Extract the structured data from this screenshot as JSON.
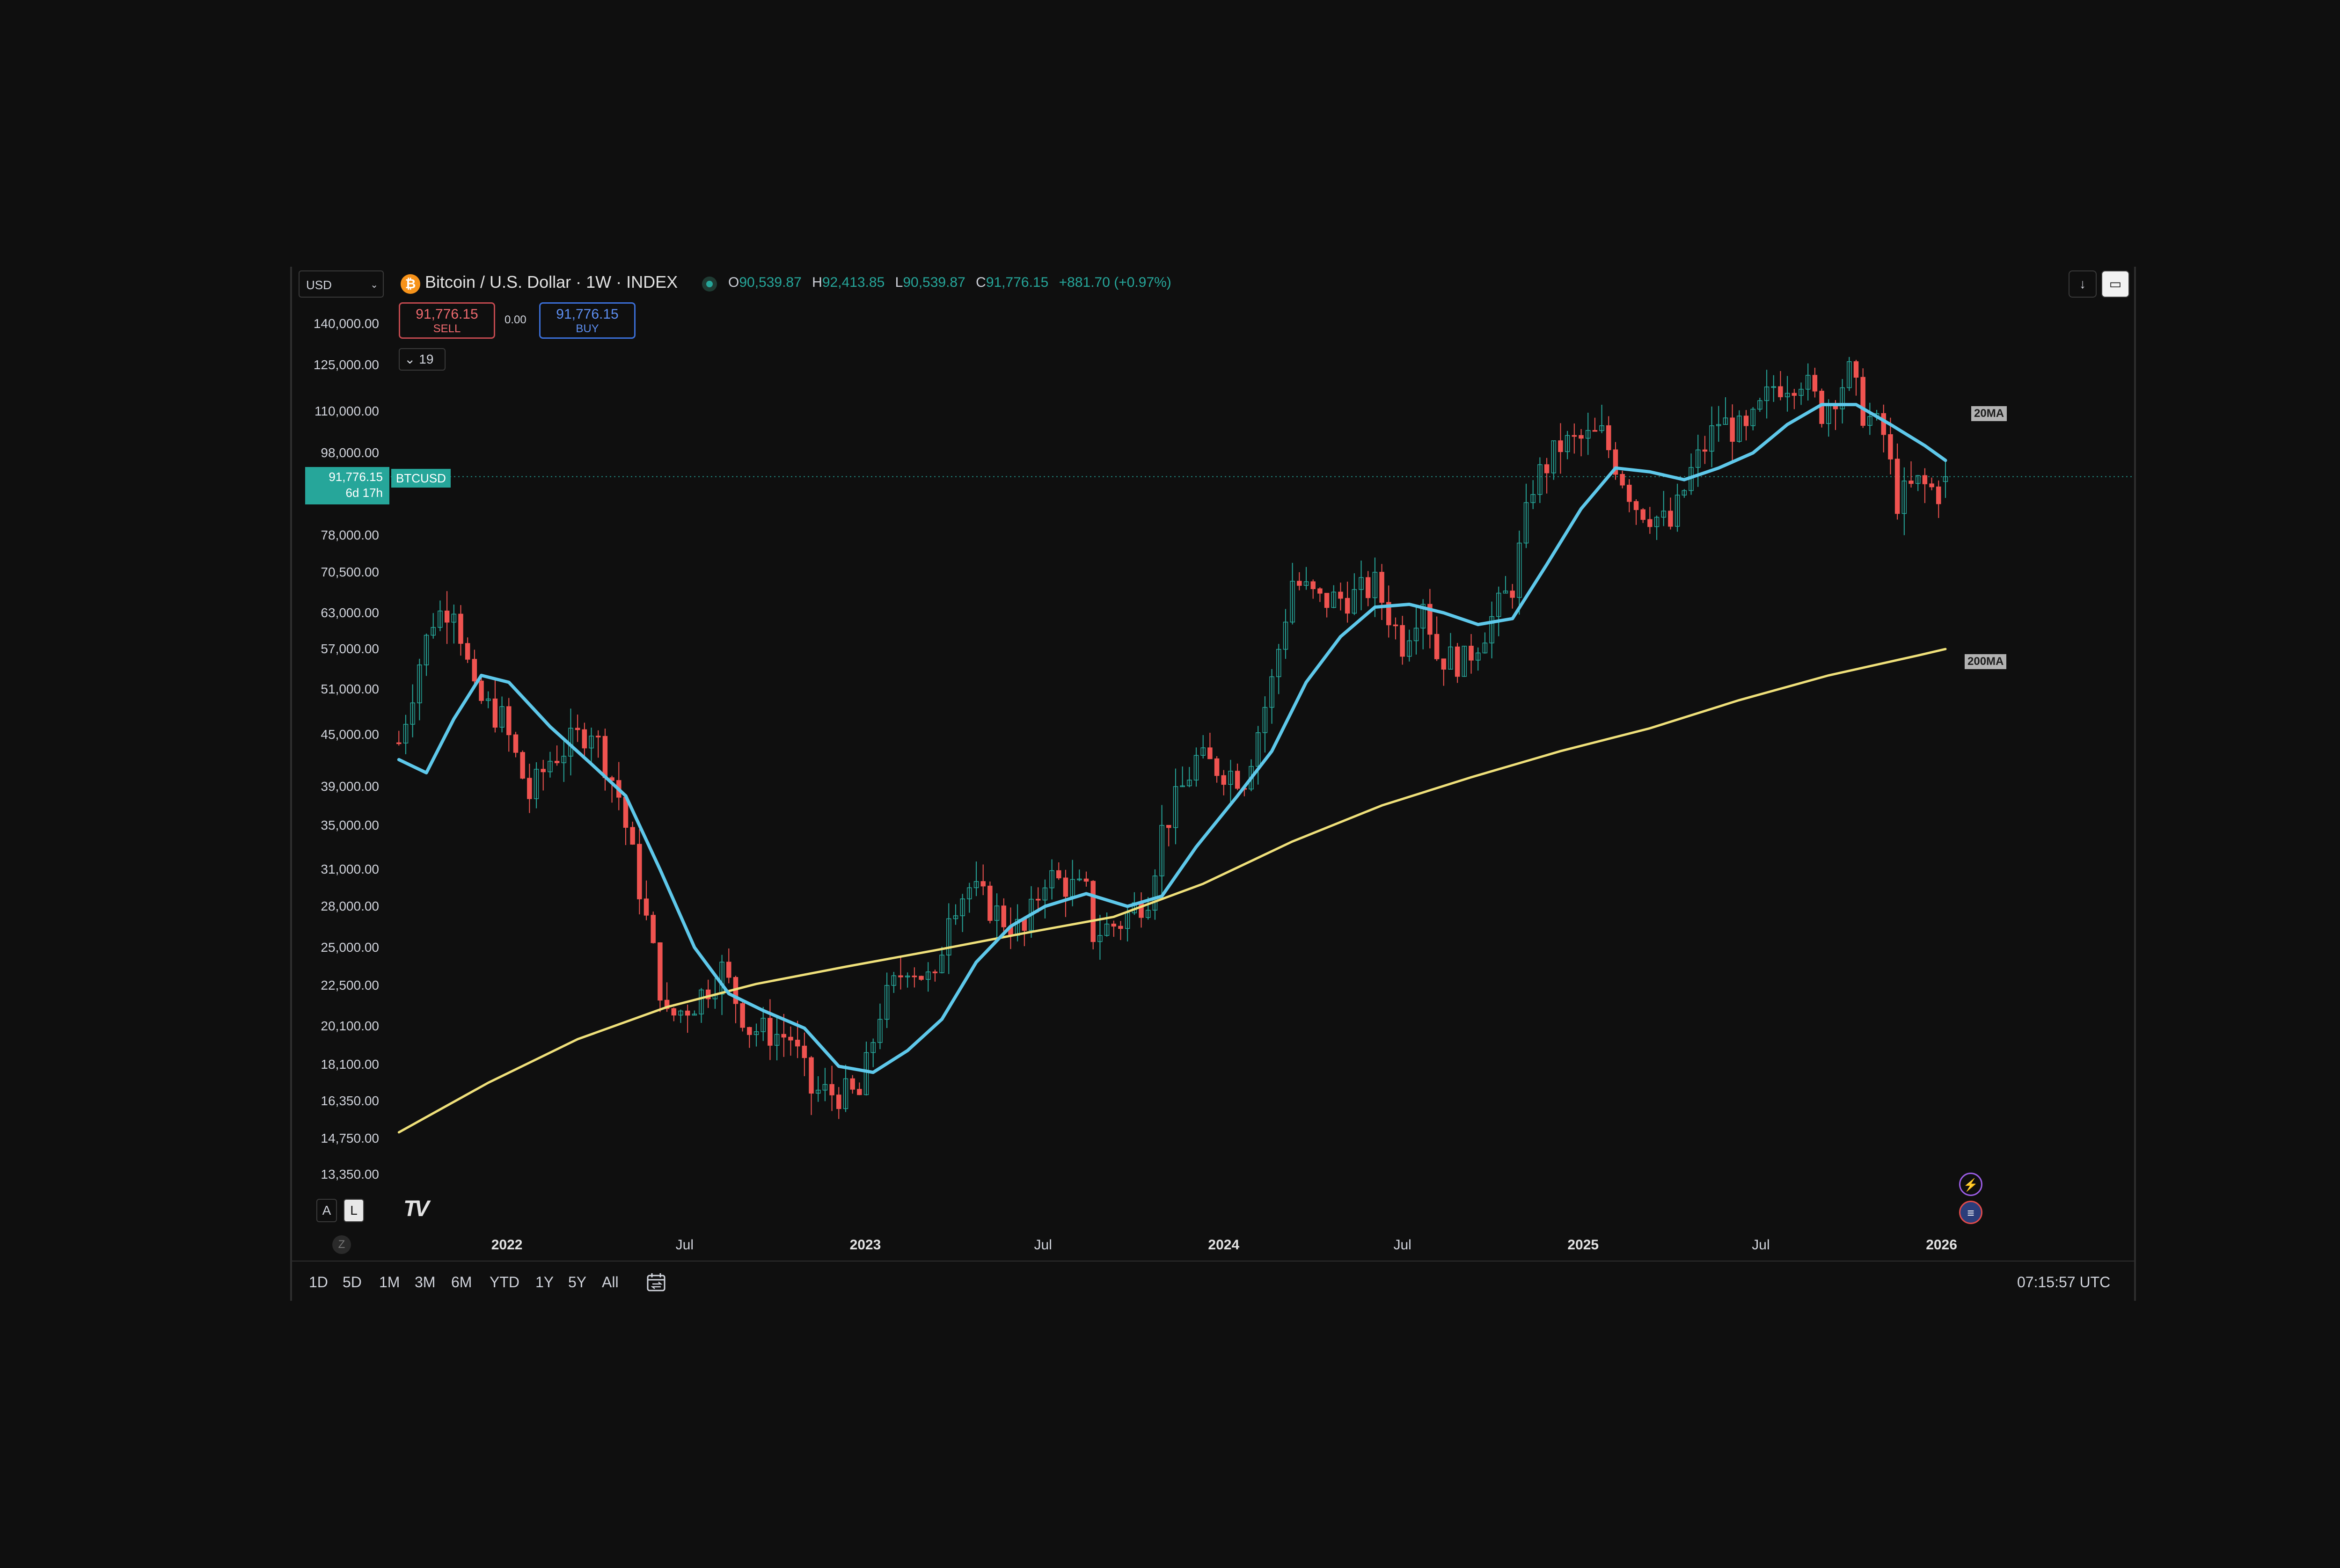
{
  "header": {
    "currency": "USD",
    "symbol_icon_text": "₿",
    "symbol_title": "Bitcoin / U.S. Dollar · 1W · INDEX",
    "ohlc": {
      "o_label": "O",
      "o": "90,539.87",
      "h_label": "H",
      "h": "92,413.85",
      "l_label": "L",
      "l": "90,539.87",
      "c_label": "C",
      "c": "91,776.15",
      "change": "+881.70 (+0.97%)"
    },
    "sell_price": "91,776.15",
    "sell_label": "SELL",
    "spread": "0.00",
    "buy_price": "91,776.15",
    "buy_label": "BUY",
    "indicators_count": "19",
    "download_icon": "arrow-down-icon",
    "fullscreen_icon": "fullscreen-icon"
  },
  "price_label": {
    "price": "91,776.15",
    "countdown": "6d 17h",
    "symbol": "BTCUSD"
  },
  "ma_labels": {
    "ma20": "20MA",
    "ma200": "200MA"
  },
  "bottom": {
    "auto_label": "A",
    "log_label": "L",
    "logo_text": "TV",
    "z_label": "Z",
    "ranges": [
      "1D",
      "5D",
      "1M",
      "3M",
      "6M",
      "YTD",
      "1Y",
      "5Y",
      "All"
    ],
    "clock": "07:15:57 UTC"
  },
  "colors": {
    "up": "#26a69a",
    "down": "#ef5350",
    "ma20": "#5ec8ea",
    "ma200": "#efe07a",
    "background": "#0f0f0f"
  },
  "chart_data": {
    "type": "candlestick",
    "symbol": "BTCUSD",
    "interval": "1W",
    "scale": "log",
    "ylim": [
      13350,
      140000
    ],
    "y_ticks": [
      "140,000.00",
      "125,000.00",
      "110,000.00",
      "98,000.00",
      "78,000.00",
      "70,500.00",
      "63,000.00",
      "57,000.00",
      "51,000.00",
      "45,000.00",
      "39,000.00",
      "35,000.00",
      "31,000.00",
      "28,000.00",
      "25,000.00",
      "22,500.00",
      "20,100.00",
      "18,100.00",
      "16,350.00",
      "14,750.00",
      "13,350.00"
    ],
    "x_ticks": [
      {
        "label": "2022",
        "date": "2022-01-01",
        "major": true
      },
      {
        "label": "Jul",
        "date": "2022-07-01",
        "major": false
      },
      {
        "label": "2023",
        "date": "2023-01-01",
        "major": true
      },
      {
        "label": "Jul",
        "date": "2023-07-01",
        "major": false
      },
      {
        "label": "2024",
        "date": "2024-01-01",
        "major": true
      },
      {
        "label": "Jul",
        "date": "2024-07-01",
        "major": false
      },
      {
        "label": "2025",
        "date": "2025-01-01",
        "major": true
      },
      {
        "label": "Jul",
        "date": "2025-07-01",
        "major": false
      },
      {
        "label": "2026",
        "date": "2026-01-01",
        "major": true
      }
    ],
    "x_range": [
      "2021-09-10",
      "2026-02-05"
    ],
    "close_path": [
      [
        "2021-09-13",
        44000
      ],
      [
        "2021-10-04",
        55000
      ],
      [
        "2021-10-18",
        62000
      ],
      [
        "2021-11-08",
        65000
      ],
      [
        "2021-11-29",
        50000
      ],
      [
        "2021-12-27",
        47000
      ],
      [
        "2022-01-24",
        38000
      ],
      [
        "2022-02-14",
        42000
      ],
      [
        "2022-03-28",
        46000
      ],
      [
        "2022-04-25",
        38000
      ],
      [
        "2022-05-16",
        29500
      ],
      [
        "2022-06-13",
        20500
      ],
      [
        "2022-07-11",
        21500
      ],
      [
        "2022-08-08",
        23500
      ],
      [
        "2022-09-05",
        20000
      ],
      [
        "2022-10-17",
        19500
      ],
      [
        "2022-11-07",
        16800
      ],
      [
        "2022-12-26",
        16600
      ],
      [
        "2023-01-16",
        21000
      ],
      [
        "2023-02-13",
        24000
      ],
      [
        "2023-03-13",
        22500
      ],
      [
        "2023-03-27",
        28000
      ],
      [
        "2023-04-17",
        29500
      ],
      [
        "2023-05-22",
        27000
      ],
      [
        "2023-06-12",
        26000
      ],
      [
        "2023-07-03",
        30500
      ],
      [
        "2023-08-14",
        29000
      ],
      [
        "2023-08-21",
        26000
      ],
      [
        "2023-09-18",
        26800
      ],
      [
        "2023-10-16",
        29000
      ],
      [
        "2023-10-30",
        34500
      ],
      [
        "2023-12-04",
        42000
      ],
      [
        "2024-01-22",
        40000
      ],
      [
        "2024-02-19",
        52000
      ],
      [
        "2024-03-11",
        69000
      ],
      [
        "2024-04-08",
        65000
      ],
      [
        "2024-05-13",
        66000
      ],
      [
        "2024-06-03",
        68000
      ],
      [
        "2024-07-01",
        58000
      ],
      [
        "2024-07-22",
        66000
      ],
      [
        "2024-08-05",
        56000
      ],
      [
        "2024-09-02",
        55000
      ],
      [
        "2024-09-30",
        62000
      ],
      [
        "2024-10-21",
        68000
      ],
      [
        "2024-11-11",
        90000
      ],
      [
        "2024-12-09",
        100000
      ],
      [
        "2025-01-20",
        103000
      ],
      [
        "2025-02-24",
        85000
      ],
      [
        "2025-03-31",
        80000
      ],
      [
        "2025-04-21",
        93000
      ],
      [
        "2025-05-19",
        107000
      ],
      [
        "2025-06-16",
        103000
      ],
      [
        "2025-07-14",
        118000
      ],
      [
        "2025-08-11",
        121000
      ],
      [
        "2025-09-01",
        110000
      ],
      [
        "2025-09-29",
        122000
      ],
      [
        "2025-10-13",
        110000
      ],
      [
        "2025-11-03",
        103000
      ],
      [
        "2025-11-17",
        86000
      ],
      [
        "2025-12-08",
        90000
      ],
      [
        "2025-12-29",
        88000
      ],
      [
        "2026-01-05",
        91776.15
      ]
    ],
    "last": {
      "open": 90539.87,
      "high": 92413.85,
      "low": 90539.87,
      "close": 91776.15
    },
    "series": [
      {
        "name": "20MA",
        "points": [
          [
            "2021-09-13",
            42000
          ],
          [
            "2021-10-11",
            40500
          ],
          [
            "2021-11-08",
            47000
          ],
          [
            "2021-12-06",
            53000
          ],
          [
            "2022-01-03",
            52000
          ],
          [
            "2022-02-14",
            46000
          ],
          [
            "2022-03-28",
            41500
          ],
          [
            "2022-05-02",
            38000
          ],
          [
            "2022-06-06",
            31000
          ],
          [
            "2022-07-11",
            25000
          ],
          [
            "2022-08-15",
            22000
          ],
          [
            "2022-09-19",
            21000
          ],
          [
            "2022-10-31",
            20000
          ],
          [
            "2022-12-05",
            18000
          ],
          [
            "2023-01-09",
            17700
          ],
          [
            "2023-02-13",
            18800
          ],
          [
            "2023-03-20",
            20500
          ],
          [
            "2023-04-24",
            24000
          ],
          [
            "2023-05-29",
            26500
          ],
          [
            "2023-07-03",
            28000
          ],
          [
            "2023-08-14",
            29000
          ],
          [
            "2023-09-25",
            28000
          ],
          [
            "2023-10-30",
            28800
          ],
          [
            "2023-12-04",
            33000
          ],
          [
            "2024-01-15",
            38000
          ],
          [
            "2024-02-19",
            43000
          ],
          [
            "2024-03-25",
            52000
          ],
          [
            "2024-04-29",
            59000
          ],
          [
            "2024-06-03",
            64000
          ],
          [
            "2024-07-08",
            64500
          ],
          [
            "2024-08-12",
            63000
          ],
          [
            "2024-09-16",
            61000
          ],
          [
            "2024-10-21",
            62000
          ],
          [
            "2024-11-25",
            72000
          ],
          [
            "2024-12-30",
            84000
          ],
          [
            "2025-02-03",
            94000
          ],
          [
            "2025-03-10",
            93000
          ],
          [
            "2025-04-14",
            91000
          ],
          [
            "2025-05-19",
            94000
          ],
          [
            "2025-06-23",
            98000
          ],
          [
            "2025-07-28",
            106000
          ],
          [
            "2025-09-01",
            112000
          ],
          [
            "2025-10-06",
            112000
          ],
          [
            "2025-11-10",
            106000
          ],
          [
            "2025-12-15",
            100000
          ],
          [
            "2026-01-05",
            96000
          ]
        ]
      },
      {
        "name": "200MA",
        "points": [
          [
            "2021-09-13",
            15000
          ],
          [
            "2021-12-13",
            17200
          ],
          [
            "2022-03-14",
            19400
          ],
          [
            "2022-06-13",
            21200
          ],
          [
            "2022-09-12",
            22600
          ],
          [
            "2022-12-12",
            23700
          ],
          [
            "2023-03-13",
            24800
          ],
          [
            "2023-06-12",
            26000
          ],
          [
            "2023-09-11",
            27200
          ],
          [
            "2023-12-11",
            29800
          ],
          [
            "2024-03-11",
            33500
          ],
          [
            "2024-06-10",
            37000
          ],
          [
            "2024-09-09",
            40000
          ],
          [
            "2024-12-09",
            43000
          ],
          [
            "2025-03-10",
            45800
          ],
          [
            "2025-06-09",
            49500
          ],
          [
            "2025-09-08",
            53000
          ],
          [
            "2025-12-08",
            56000
          ],
          [
            "2026-01-05",
            57000
          ]
        ]
      }
    ]
  }
}
